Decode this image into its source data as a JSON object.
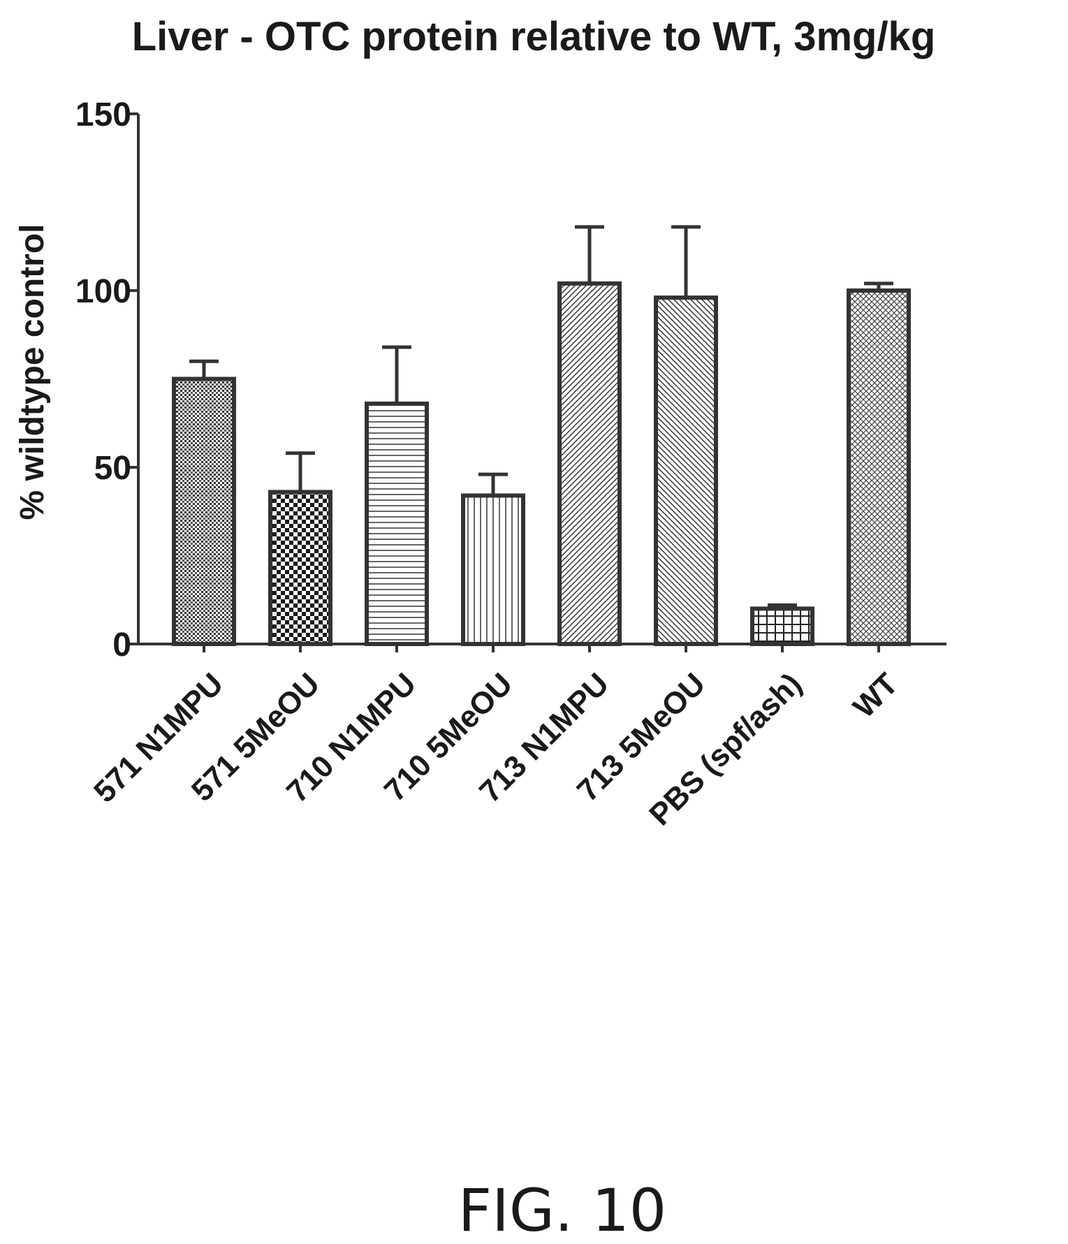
{
  "chart_data": {
    "type": "bar",
    "title": "Liver - OTC protein relative to WT, 3mg/kg",
    "ylabel": "% wildtype control",
    "xlabel": "",
    "ylim": [
      0,
      150
    ],
    "yticks": [
      0,
      50,
      100,
      150
    ],
    "grid": false,
    "categories": [
      "571 N1MPU",
      "571 5MeOU",
      "710 N1MPU",
      "710 5MeOU",
      "713 N1MPU",
      "713 5MeOU",
      "PBS (spf/ash)",
      "WT"
    ],
    "values": [
      75,
      43,
      68,
      42,
      102,
      98,
      10,
      100
    ],
    "error_upper": [
      80,
      54,
      84,
      48,
      118,
      118,
      11,
      102
    ],
    "patterns": [
      "fine-dots",
      "checker",
      "horizontal-lines",
      "vertical-lines",
      "diagonal-right",
      "diagonal-left",
      "grid",
      "crosshatch"
    ]
  },
  "caption": "FIG. 10"
}
